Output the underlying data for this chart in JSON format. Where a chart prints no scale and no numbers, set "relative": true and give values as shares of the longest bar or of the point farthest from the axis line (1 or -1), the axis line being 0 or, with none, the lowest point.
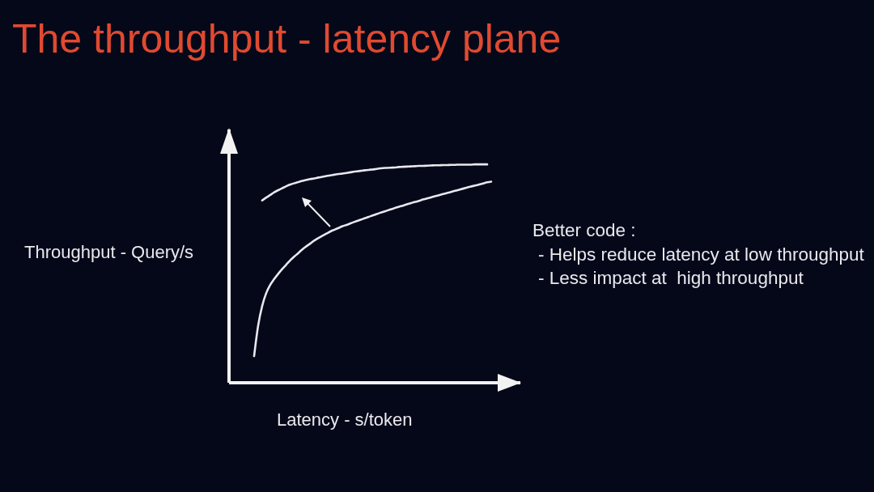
{
  "chart_data": {
    "type": "line",
    "title": "The throughput - latency plane",
    "xlabel": "Latency - s/token",
    "ylabel": "Throughput - Query/s",
    "annotations": [
      "Better code :",
      "- Helps reduce latency at low throughput",
      "- Less impact at  high throughput"
    ],
    "relative": true,
    "marker": "none",
    "categories": [
      null,
      null,
      null,
      null,
      null,
      null,
      null,
      null,
      null,
      null,
      null,
      null,
      null,
      null,
      null,
      null,
      null,
      null,
      null,
      null,
      null,
      null,
      null,
      null,
      null,
      null,
      null,
      null,
      null,
      null,
      null,
      null,
      null,
      null,
      null,
      null,
      null,
      null,
      null,
      null,
      null,
      null,
      null,
      null,
      null,
      null,
      null,
      null,
      null,
      null,
      null,
      null,
      null,
      null,
      null,
      null,
      null,
      null,
      null,
      null
    ],
    "series": [
      {
        "color": "#e8e8ef",
        "values": [
          0.122,
          0.261,
          0.351,
          0.41,
          0.448,
          0.475,
          0.499,
          0.521,
          0.541,
          0.561,
          0.578,
          0.594,
          0.611,
          0.625,
          0.638,
          0.652,
          0.663,
          0.673,
          0.683,
          0.693,
          0.701,
          0.709,
          0.717,
          0.723,
          0.73,
          0.737,
          0.743,
          0.75,
          0.756,
          0.763,
          0.769,
          0.776,
          0.782,
          0.788,
          0.794,
          0.8,
          0.806,
          0.811,
          0.817,
          0.823,
          0.828,
          0.833,
          0.839,
          0.844,
          0.849,
          0.854,
          0.859,
          0.864,
          0.869,
          0.874,
          0.879,
          0.884,
          0.889,
          0.894,
          0.899,
          0.903,
          0.908,
          0.913,
          0.918,
          0.921
        ]
      },
      {
        "color": "#e8e8ef",
        "values": [
          null,
          null,
          0.835,
          0.848,
          0.86,
          0.872,
          0.882,
          0.891,
          0.9,
          0.908,
          0.914,
          0.919,
          0.925,
          0.929,
          0.933,
          0.936,
          0.94,
          0.943,
          0.947,
          0.95,
          0.953,
          0.956,
          0.958,
          0.961,
          0.964,
          0.967,
          0.969,
          0.972,
          0.974,
          0.976,
          0.978,
          0.981,
          0.983,
          0.984,
          0.985,
          0.986,
          0.988,
          0.989,
          0.99,
          0.991,
          0.992,
          0.993,
          0.993,
          0.994,
          0.995,
          0.996,
          0.996,
          0.997,
          0.997,
          0.998,
          0.998,
          0.999,
          0.999,
          0.999,
          0.999,
          1,
          1,
          1,
          1,
          null
        ]
      }
    ]
  }
}
